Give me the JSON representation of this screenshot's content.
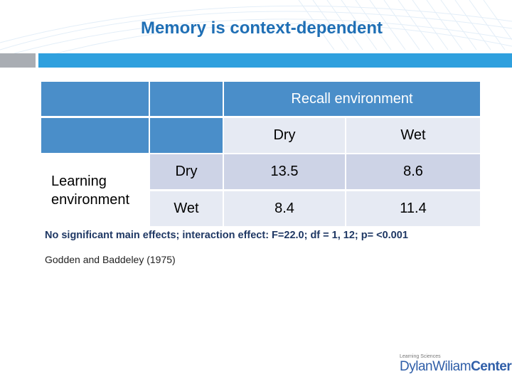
{
  "slide": {
    "title": "Memory is context-dependent"
  },
  "table": {
    "recall_header": "Recall environment",
    "col_headers": [
      "Dry",
      "Wet"
    ],
    "row_group_label": "Learning environment",
    "rows": [
      {
        "label": "Dry",
        "values": [
          "13.5",
          "8.6"
        ]
      },
      {
        "label": "Wet",
        "values": [
          "8.4",
          "11.4"
        ]
      }
    ]
  },
  "footnote": {
    "stats": "No significant main effects; interaction effect: F=22.0; df = 1, 12; p= <0.001",
    "citation": "Godden and Baddeley (1975)"
  },
  "logo": {
    "tagline": "Learning Sciences",
    "name_part1": "DylanWiliam",
    "name_part2": "Center"
  },
  "colors": {
    "title": "#1f6fb5",
    "header_fill": "#4a8ec9",
    "row_light": "#e6eaf3",
    "row_dark": "#cdd3e6",
    "accent_bar": "#2fa0de",
    "grey_bar": "#a9adb3"
  }
}
